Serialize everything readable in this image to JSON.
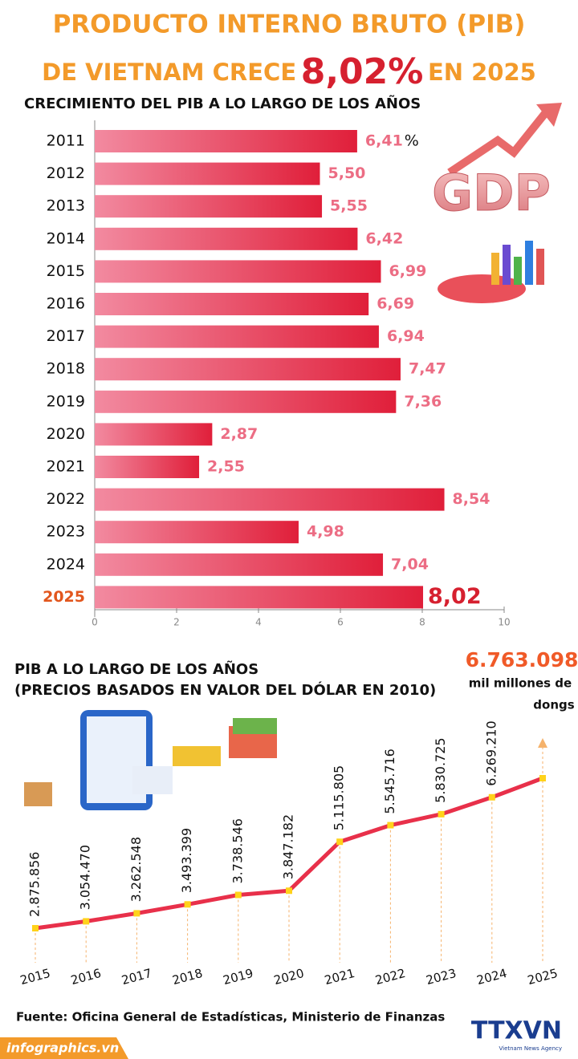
{
  "header": {
    "title_line1": "PRODUCTO INTERNO BRUTO (PIB)",
    "title_line2_start": "DE VIETNAM CRECE",
    "title_highlight": "8,02%",
    "title_line2_end": "EN 2025"
  },
  "chart_data": [
    {
      "type": "hbar",
      "title": "CRECIMIENTO DEL PIB A LO LARGO DE LOS AÑOS",
      "categories": [
        "2011",
        "2012",
        "2013",
        "2014",
        "2015",
        "2016",
        "2017",
        "2018",
        "2019",
        "2020",
        "2021",
        "2022",
        "2023",
        "2024",
        "2025"
      ],
      "values": [
        6.41,
        5.5,
        5.55,
        6.42,
        6.99,
        6.69,
        6.94,
        7.47,
        7.36,
        2.87,
        2.55,
        8.54,
        4.98,
        7.04,
        8.02
      ],
      "value_labels": [
        "6,41",
        "5,50",
        "5,55",
        "6,42",
        "6,99",
        "6,69",
        "6,94",
        "7,47",
        "7,36",
        "2,87",
        "2,55",
        "8,54",
        "4,98",
        "7,04",
        "8,02"
      ],
      "unit": "%",
      "color": "#e8304a",
      "xlim": [
        0,
        10
      ],
      "xticks": [
        0,
        2,
        4,
        6,
        8,
        10
      ],
      "image_text": "GDP"
    },
    {
      "type": "line",
      "title_line1": "PIB A LO LARGO DE LOS AÑOS",
      "title_line2": "(PRECIOS BASADOS EN VALOR DEL DÓLAR EN 2010)",
      "categories": [
        "2015",
        "2016",
        "2017",
        "2018",
        "2019",
        "2020",
        "2021",
        "2022",
        "2023",
        "2024",
        "2025"
      ],
      "values": [
        2875856,
        3054470,
        3262548,
        3493399,
        3738546,
        3847182,
        5115805,
        5545716,
        5830725,
        6269210,
        6763098
      ],
      "value_labels": [
        "2.875.856",
        "3.054.470",
        "3.262.548",
        "3.493.399",
        "3.738.546",
        "3.847.182",
        "5.115.805",
        "5.545.716",
        "5.830.725",
        "6.269.210",
        "6.763.098"
      ],
      "unit_line1": "mil millones de",
      "unit_line2": "dongs",
      "color": "#e8304a",
      "marker_color": "#ffd21a"
    }
  ],
  "footer": {
    "source": "Fuente: Oficina General de Estadísticas, Ministerio de Finanzas",
    "site": "infographics.vn",
    "logo": "TTXVN",
    "logo_sub": "Vietnam News Agency"
  }
}
